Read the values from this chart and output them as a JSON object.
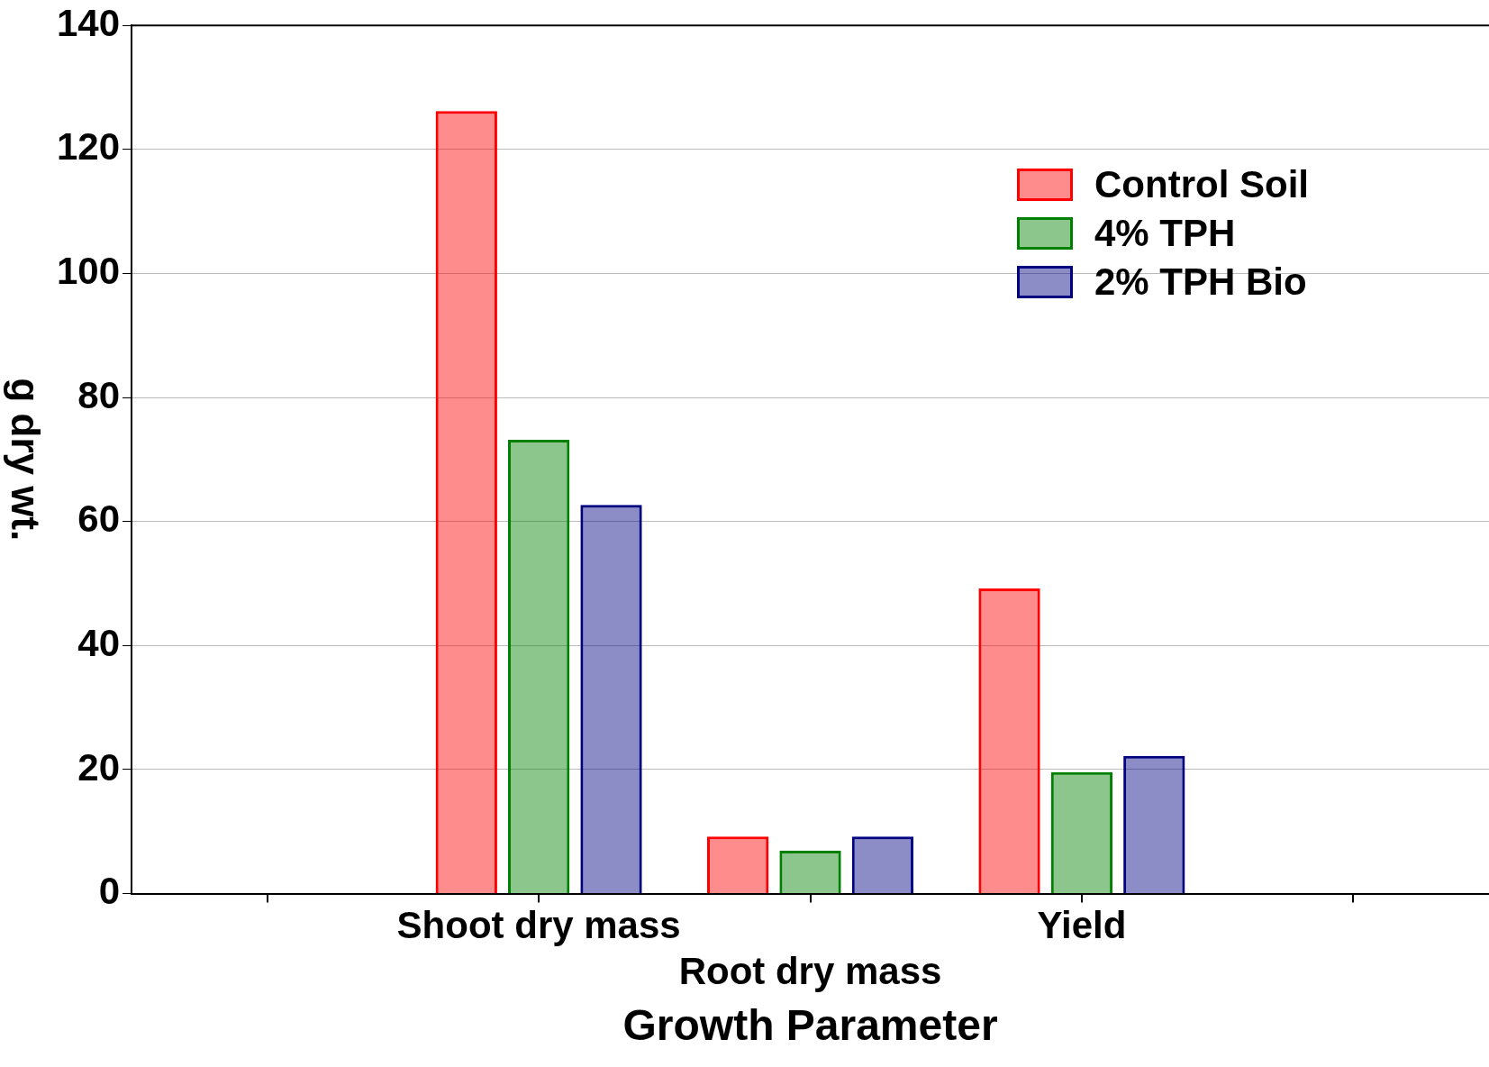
{
  "chart_data": {
    "type": "bar",
    "xlabel": "Growth Parameter",
    "ylabel": "g dry wt.",
    "categories": [
      null,
      "Shoot dry mass",
      "Root dry mass",
      "Yield",
      null
    ],
    "series": [
      {
        "name": "Control Soil",
        "color": "#ff0000",
        "values": [
          null,
          126.2,
          9.2,
          49.2,
          null
        ]
      },
      {
        "name": "4% TPH",
        "color": "#008000",
        "values": [
          null,
          73.2,
          6.9,
          19.6,
          null
        ]
      },
      {
        "name": "2% TPH Bio",
        "color": "#000080",
        "values": [
          null,
          62.7,
          9.2,
          22.2,
          null
        ]
      }
    ],
    "ylim": [
      0,
      140
    ],
    "yticks": [
      0,
      20,
      40,
      60,
      80,
      100,
      120,
      140
    ],
    "grid": "y",
    "legend": "top right"
  }
}
